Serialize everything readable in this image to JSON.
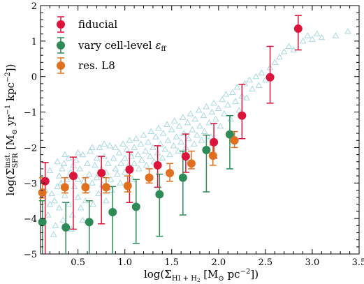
{
  "chart_data": {
    "type": "scatter",
    "xlabel": "log(Σ",
    "xlabel_sub": "HI + H",
    "xlabel_sub2": "2",
    "xlabel_tail": " [M",
    "xlabel_unit_sub": "⊙",
    "xlabel_unit": " pc",
    "xlabel_unit_sup": "−2",
    "xlabel_close": "])",
    "ylabel": "log(Σ",
    "ylabel_sup": "inst.",
    "ylabel_sub": "SFR",
    "ylabel_tail": " [M",
    "ylabel_unit_sub": "⊙",
    "ylabel_unit": " yr",
    "ylabel_unit_sup": "−1",
    "ylabel_unit2": " kpc",
    "ylabel_unit2_sup": "−2",
    "ylabel_close": "])",
    "xlim": [
      0.1,
      3.5
    ],
    "ylim": [
      -5,
      2
    ],
    "xticks": [
      "0.5",
      "1.0",
      "1.5",
      "2.0",
      "2.5",
      "3.0",
      "3.5"
    ],
    "xtick_values": [
      0.5,
      1.0,
      1.5,
      2.0,
      2.5,
      3.0,
      3.5
    ],
    "yticks": [
      "−5",
      "−4",
      "−3",
      "−2",
      "−1",
      "0",
      "1",
      "2"
    ],
    "ytick_values": [
      -5,
      -4,
      -3,
      -2,
      -1,
      0,
      1,
      2
    ],
    "legend_position": "top-left",
    "series": [
      {
        "name": "fiducial",
        "color": "#dc143c",
        "marker": "circle",
        "points": [
          {
            "x": 0.15,
            "y": -2.95,
            "lo": -5.0,
            "hi": -2.42
          },
          {
            "x": 0.45,
            "y": -2.8,
            "lo": -4.3,
            "hi": -2.27
          },
          {
            "x": 0.75,
            "y": -2.72,
            "lo": -4.15,
            "hi": -2.25
          },
          {
            "x": 1.05,
            "y": -2.62,
            "lo": -3.55,
            "hi": -2.13
          },
          {
            "x": 1.35,
            "y": -2.5,
            "lo": -3.12,
            "hi": -1.95
          },
          {
            "x": 1.65,
            "y": -2.25,
            "lo": -2.7,
            "hi": -1.62
          },
          {
            "x": 1.95,
            "y": -1.85,
            "lo": -2.3,
            "hi": -1.32
          },
          {
            "x": 2.25,
            "y": -1.1,
            "lo": -1.75,
            "hi": -0.22
          },
          {
            "x": 2.55,
            "y": -0.02,
            "lo": -0.75,
            "hi": 0.85
          },
          {
            "x": 2.85,
            "y": 1.35,
            "lo": 0.75,
            "hi": 1.72
          }
        ]
      },
      {
        "name": "vary cell-level ",
        "name_symbol": "ε",
        "name_sub": "ff",
        "color": "#2e8b57",
        "marker": "circle",
        "points": [
          {
            "x": 0.12,
            "y": -4.1,
            "lo": -5.0,
            "hi": -3.5
          },
          {
            "x": 0.37,
            "y": -4.25,
            "lo": -5.0,
            "hi": -3.55
          },
          {
            "x": 0.62,
            "y": -4.1,
            "lo": -5.0,
            "hi": -3.5
          },
          {
            "x": 0.87,
            "y": -3.82,
            "lo": -5.0,
            "hi": -3.1
          },
          {
            "x": 1.12,
            "y": -3.67,
            "lo": -4.7,
            "hi": -2.9
          },
          {
            "x": 1.37,
            "y": -3.32,
            "lo": -4.5,
            "hi": -2.75
          },
          {
            "x": 1.62,
            "y": -2.85,
            "lo": -3.9,
            "hi": -2.1
          },
          {
            "x": 1.87,
            "y": -2.07,
            "lo": -3.25,
            "hi": -1.65
          },
          {
            "x": 2.12,
            "y": -1.63,
            "lo": -2.6,
            "hi": -1.1
          }
        ]
      },
      {
        "name": "res. L8",
        "color": "#e07020",
        "marker": "circle",
        "points": [
          {
            "x": 0.12,
            "y": -3.27,
            "lo": -3.42,
            "hi": -2.85
          },
          {
            "x": 0.36,
            "y": -3.12,
            "lo": -3.28,
            "hi": -2.85
          },
          {
            "x": 0.58,
            "y": -3.12,
            "lo": -3.28,
            "hi": -2.85
          },
          {
            "x": 0.8,
            "y": -3.12,
            "lo": -3.28,
            "hi": -2.85
          },
          {
            "x": 1.03,
            "y": -3.08,
            "lo": -3.25,
            "hi": -2.8
          },
          {
            "x": 1.26,
            "y": -2.85,
            "lo": -3.0,
            "hi": -2.6
          },
          {
            "x": 1.48,
            "y": -2.72,
            "lo": -2.95,
            "hi": -2.45
          },
          {
            "x": 1.71,
            "y": -2.45,
            "lo": -2.6,
            "hi": -2.1
          },
          {
            "x": 1.94,
            "y": -2.23,
            "lo": -2.5,
            "hi": -1.93
          },
          {
            "x": 2.17,
            "y": -1.8,
            "lo": -2.0,
            "hi": -1.55
          }
        ]
      }
    ],
    "background_series": {
      "marker": "open-triangle",
      "color": "#a8d8e0",
      "points": [
        [
          0.18,
          -3.9
        ],
        [
          0.2,
          -3.6
        ],
        [
          0.22,
          -3.3
        ],
        [
          0.25,
          -3.5
        ],
        [
          0.26,
          -4.2
        ],
        [
          0.28,
          -3.1
        ],
        [
          0.3,
          -2.8
        ],
        [
          0.3,
          -3.7
        ],
        [
          0.32,
          -3.0
        ],
        [
          0.33,
          -2.6
        ],
        [
          0.35,
          -2.45
        ],
        [
          0.36,
          -3.35
        ],
        [
          0.38,
          -2.9
        ],
        [
          0.4,
          -3.6
        ],
        [
          0.4,
          -2.3
        ],
        [
          0.42,
          -2.7
        ],
        [
          0.44,
          -3.9
        ],
        [
          0.45,
          -2.5
        ],
        [
          0.46,
          -3.1
        ],
        [
          0.48,
          -2.35
        ],
        [
          0.5,
          -2.9
        ],
        [
          0.5,
          -3.4
        ],
        [
          0.52,
          -2.6
        ],
        [
          0.53,
          -3.7
        ],
        [
          0.55,
          -2.2
        ],
        [
          0.56,
          -2.95
        ],
        [
          0.58,
          -3.5
        ],
        [
          0.6,
          -2.45
        ],
        [
          0.6,
          -3.2
        ],
        [
          0.62,
          -2.75
        ],
        [
          0.63,
          -2.1
        ],
        [
          0.65,
          -3.0
        ],
        [
          0.66,
          -3.6
        ],
        [
          0.68,
          -2.5
        ],
        [
          0.7,
          -2.3
        ],
        [
          0.7,
          -2.85
        ],
        [
          0.72,
          -3.3
        ],
        [
          0.73,
          -2.0
        ],
        [
          0.75,
          -2.6
        ],
        [
          0.76,
          -3.05
        ],
        [
          0.78,
          -2.25
        ],
        [
          0.8,
          -2.7
        ],
        [
          0.8,
          -3.5
        ],
        [
          0.82,
          -2.45
        ],
        [
          0.84,
          -1.95
        ],
        [
          0.85,
          -2.9
        ],
        [
          0.86,
          -3.2
        ],
        [
          0.88,
          -2.3
        ],
        [
          0.9,
          -2.6
        ],
        [
          0.9,
          -2.0
        ],
        [
          0.92,
          -2.75
        ],
        [
          0.94,
          -2.15
        ],
        [
          0.95,
          -3.0
        ],
        [
          0.96,
          -2.45
        ],
        [
          0.98,
          -1.9
        ],
        [
          1.0,
          -2.3
        ],
        [
          1.0,
          -2.7
        ],
        [
          1.02,
          -2.05
        ],
        [
          1.04,
          -2.5
        ],
        [
          1.05,
          -1.8
        ],
        [
          1.07,
          -2.25
        ],
        [
          1.08,
          -2.9
        ],
        [
          1.1,
          -2.0
        ],
        [
          1.1,
          -2.45
        ],
        [
          1.12,
          -1.75
        ],
        [
          1.14,
          -2.2
        ],
        [
          1.15,
          -2.6
        ],
        [
          1.17,
          -1.9
        ],
        [
          1.18,
          -2.35
        ],
        [
          1.2,
          -1.65
        ],
        [
          1.22,
          -2.1
        ],
        [
          1.23,
          -2.5
        ],
        [
          1.25,
          -1.85
        ],
        [
          1.27,
          -2.25
        ],
        [
          1.28,
          -1.55
        ],
        [
          1.3,
          -2.0
        ],
        [
          1.31,
          -2.4
        ],
        [
          1.33,
          -1.7
        ],
        [
          1.35,
          -2.15
        ],
        [
          1.36,
          -1.45
        ],
        [
          1.38,
          -1.9
        ],
        [
          1.4,
          -2.3
        ],
        [
          1.41,
          -1.6
        ],
        [
          1.43,
          -2.05
        ],
        [
          1.45,
          -1.35
        ],
        [
          1.46,
          -1.8
        ],
        [
          1.48,
          -2.2
        ],
        [
          1.5,
          -1.5
        ],
        [
          1.52,
          -1.95
        ],
        [
          1.53,
          -1.25
        ],
        [
          1.55,
          -1.7
        ],
        [
          1.57,
          -2.1
        ],
        [
          1.58,
          -1.4
        ],
        [
          1.6,
          -1.85
        ],
        [
          1.62,
          -1.15
        ],
        [
          1.63,
          -1.6
        ],
        [
          1.65,
          -2.0
        ],
        [
          1.67,
          -1.3
        ],
        [
          1.68,
          -1.75
        ],
        [
          1.7,
          -1.05
        ],
        [
          1.72,
          -1.5
        ],
        [
          1.74,
          -1.9
        ],
        [
          1.75,
          -1.2
        ],
        [
          1.77,
          -1.65
        ],
        [
          1.79,
          -0.95
        ],
        [
          1.8,
          -1.4
        ],
        [
          1.82,
          -1.8
        ],
        [
          1.84,
          -1.1
        ],
        [
          1.85,
          -1.55
        ],
        [
          1.87,
          -0.85
        ],
        [
          1.9,
          -1.3
        ],
        [
          1.92,
          -1.7
        ],
        [
          1.93,
          -1.0
        ],
        [
          1.95,
          -0.75
        ],
        [
          1.97,
          -1.2
        ],
        [
          2.0,
          -0.9
        ],
        [
          2.02,
          -1.4
        ],
        [
          2.04,
          -0.65
        ],
        [
          2.06,
          -1.05
        ],
        [
          2.08,
          -0.5
        ],
        [
          2.1,
          -0.8
        ],
        [
          2.13,
          -1.2
        ],
        [
          2.15,
          -0.45
        ],
        [
          2.18,
          -0.7
        ],
        [
          2.2,
          -0.3
        ],
        [
          2.22,
          -0.95
        ],
        [
          2.25,
          -0.55
        ],
        [
          2.28,
          -0.2
        ],
        [
          2.3,
          -0.6
        ],
        [
          2.33,
          -0.1
        ],
        [
          2.36,
          -0.35
        ],
        [
          2.4,
          0.0
        ],
        [
          2.43,
          -0.25
        ],
        [
          2.46,
          0.1
        ],
        [
          2.5,
          -0.1
        ],
        [
          2.55,
          0.25
        ],
        [
          2.6,
          0.4
        ],
        [
          2.65,
          0.55
        ],
        [
          2.7,
          0.7
        ],
        [
          2.75,
          0.85
        ],
        [
          2.8,
          0.75
        ],
        [
          2.9,
          1.0
        ],
        [
          2.95,
          1.15
        ],
        [
          3.0,
          1.05
        ],
        [
          3.05,
          1.2
        ],
        [
          3.1,
          1.1
        ],
        [
          3.25,
          1.15
        ],
        [
          3.38,
          1.27
        ],
        [
          0.24,
          -4.45
        ],
        [
          0.34,
          -4.05
        ],
        [
          0.43,
          -4.3
        ],
        [
          0.55,
          -4.05
        ],
        [
          0.15,
          -3.2
        ],
        [
          0.17,
          -2.9
        ],
        [
          0.2,
          -2.65
        ],
        [
          0.28,
          -2.4
        ],
        [
          0.36,
          -2.2
        ],
        [
          0.5,
          -2.15
        ],
        [
          0.65,
          -2.0
        ],
        [
          0.78,
          -1.9
        ]
      ]
    }
  }
}
